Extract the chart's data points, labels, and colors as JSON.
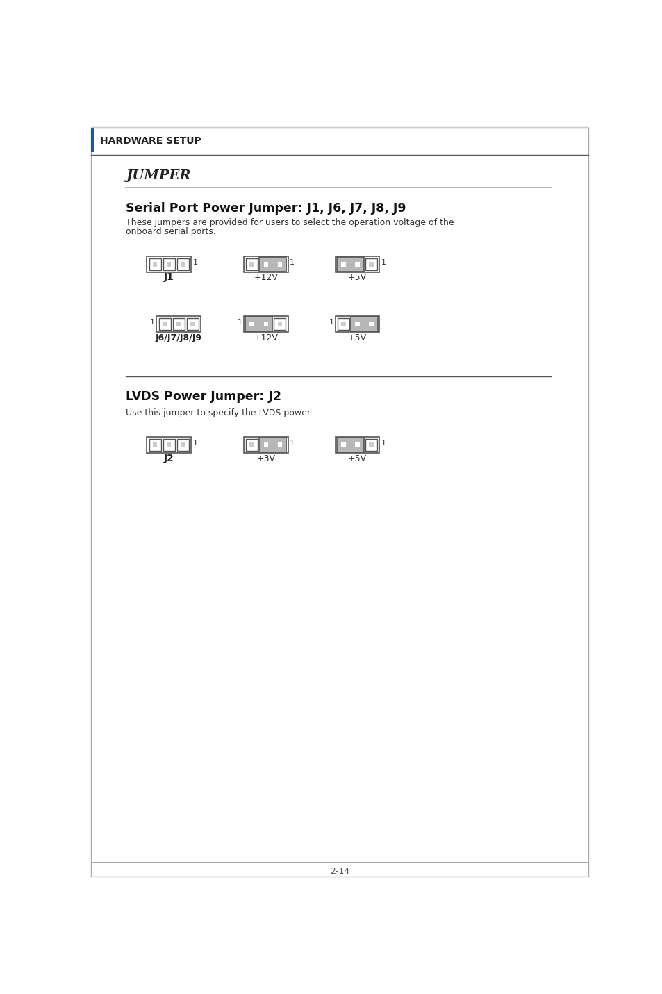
{
  "bg_color": "#ffffff",
  "header_text": "HARDWARE SETUP",
  "section_title": "JUMPER",
  "section1_title": "Serial Port Power Jumper: J1, J6, J7, J8, J9",
  "section1_desc_line1": "These jumpers are provided for users to select the operation voltage of the",
  "section1_desc_line2": "onboard serial ports.",
  "section2_title": "LVDS Power Jumper: J2",
  "section2_desc": "Use this jumper to specify the LVDS power.",
  "footer_text": "2-14",
  "gray_fill": "#b8b8b8",
  "white_fill": "#ffffff",
  "box_edge": "#555555",
  "inner_pin_color": "#e8e8e8",
  "accent_color": "#2255aa"
}
